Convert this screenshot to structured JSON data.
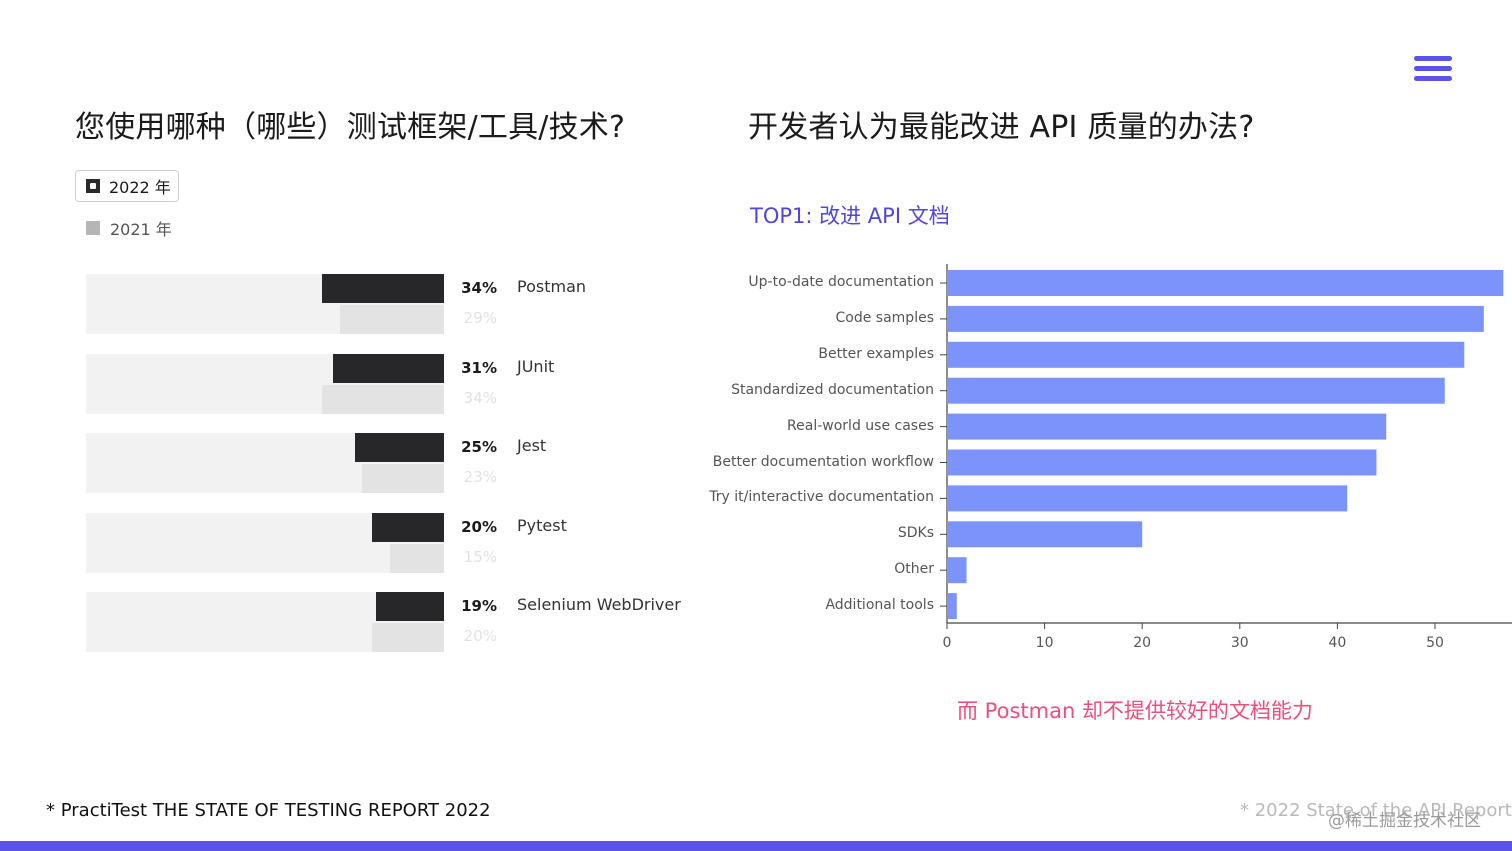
{
  "left_panel": {
    "title": "您使用哪种（哪些）测试框架/工具/技术?",
    "legend": {
      "current": "2022 年",
      "previous": "2021 年"
    }
  },
  "right_panel": {
    "title": "开发者认为最能改进 API 质量的办法?",
    "subtitle": "TOP1: 改进 API 文档",
    "note": "而 Postman 却不提供较好的文档能力"
  },
  "footer": {
    "left_source": "* PractiTest THE STATE OF TESTING REPORT 2022",
    "right_source": "* 2022 State of the API Report",
    "watermark": "@稀土掘金技术社区"
  },
  "colors": {
    "accent": "#5b52e8",
    "bar_2022": "#27272a",
    "bar_2021": "#e3e3e3",
    "right_bar": "#7b93fb",
    "subtitle": "#4f45e0",
    "note": "#ec4f7c"
  },
  "icons": {
    "menu": "hamburger-menu-icon"
  },
  "chart_data": [
    {
      "type": "bar",
      "orientation": "horizontal",
      "title": "您使用哪种（哪些）测试框架/工具/技术?",
      "categories": [
        "Postman",
        "JUnit",
        "Jest",
        "Pytest",
        "Selenium WebDriver"
      ],
      "series": [
        {
          "name": "2022 年",
          "values": [
            34,
            31,
            25,
            20,
            19
          ],
          "labels": [
            "34%",
            "31%",
            "25%",
            "20%",
            "19%"
          ]
        },
        {
          "name": "2021 年",
          "values": [
            29,
            34,
            23,
            15,
            20
          ],
          "labels": [
            "29%",
            "34%",
            "23%",
            "15%",
            "20%"
          ]
        }
      ],
      "unit": "%",
      "xlim": [
        0,
        100
      ]
    },
    {
      "type": "bar",
      "orientation": "horizontal",
      "title": "开发者认为最能改进 API 质量的办法?",
      "categories": [
        "Up-to-date documentation",
        "Code samples",
        "Better examples",
        "Standardized documentation",
        "Real-world use cases",
        "Better documentation workflow",
        "Try it/interactive documentation",
        "SDKs",
        "Other",
        "Additional tools"
      ],
      "values": [
        57,
        55,
        53,
        51,
        45,
        44,
        41,
        20,
        2,
        1
      ],
      "xticks": [
        "0",
        "10",
        "20",
        "30",
        "40",
        "50"
      ],
      "xlim": [
        0,
        57
      ],
      "grid": false
    }
  ]
}
